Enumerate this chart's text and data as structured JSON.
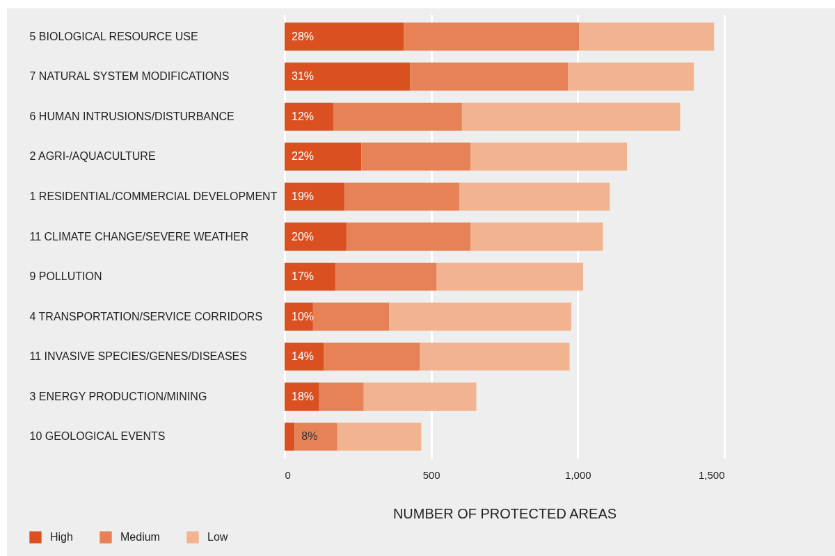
{
  "chart_data": {
    "type": "bar",
    "orientation": "horizontal",
    "stacked": true,
    "xlabel": "NUMBER OF PROTECTED AREAS",
    "categories": [
      "5 BIOLOGICAL RESOURCE USE",
      "7 NATURAL SYSTEM MODIFICATIONS",
      "6 HUMAN INTRUSIONS/DISTURBANCE",
      "2 AGRI-/AQUACULTURE",
      "1 RESIDENTIAL/COMMERCIAL DEVELOPMENT",
      "11 CLIMATE CHANGE/SEVERE WEATHER",
      "9 POLLUTION",
      "4 TRANSPORTATION/SERVICE CORRIDORS",
      "11 INVASIVE SPECIES/GENES/DISEASES",
      "3 ENERGY PRODUCTION/MINING",
      "10 GEOLOGICAL EVENTS"
    ],
    "series": [
      {
        "name": "High",
        "color": "#da5020",
        "values": [
          407,
          428,
          166,
          262,
          205,
          211,
          173,
          97,
          133,
          118,
          34
        ]
      },
      {
        "name": "Medium",
        "color": "#e68255",
        "values": [
          597,
          538,
          439,
          373,
          392,
          424,
          346,
          259,
          329,
          152,
          146
        ]
      },
      {
        "name": "Low",
        "color": "#f2b390",
        "values": [
          461,
          430,
          744,
          533,
          512,
          451,
          499,
          622,
          510,
          384,
          286
        ]
      }
    ],
    "xlim": [
      0,
      1500
    ],
    "xticks": [
      0,
      500,
      {
        "value": 1000,
        "label": "1,000"
      },
      {
        "value": 1500,
        "label": "1,500"
      }
    ],
    "annotations": [
      {
        "text": "28%",
        "y": "5 BIOLOGICAL RESOURCE USE"
      },
      {
        "text": "31%",
        "y": "7 NATURAL SYSTEM MODIFICATIONS"
      },
      {
        "text": "12%",
        "y": "6 HUMAN INTRUSIONS/DISTURBANCE"
      },
      {
        "text": "22%",
        "y": "2 AGRI-/AQUACULTURE"
      },
      {
        "text": "19%",
        "y": "1 RESIDENTIAL/COMMERCIAL DEVELOPMENT"
      },
      {
        "text": "20%",
        "y": "11 CLIMATE CHANGE/SEVERE WEATHER"
      },
      {
        "text": "17%",
        "y": "9 POLLUTION"
      },
      {
        "text": "10%",
        "y": "4 TRANSPORTATION/SERVICE CORRIDORS"
      },
      {
        "text": "14%",
        "y": "11 INVASIVE SPECIES/GENES/DISEASES"
      },
      {
        "text": "18%",
        "y": "3 ENERGY PRODUCTION/MINING"
      },
      {
        "text": "8%",
        "x": 34,
        "y": "10 GEOLOGICAL EVENTS"
      }
    ],
    "grid": "x",
    "legend": "bottom left"
  }
}
